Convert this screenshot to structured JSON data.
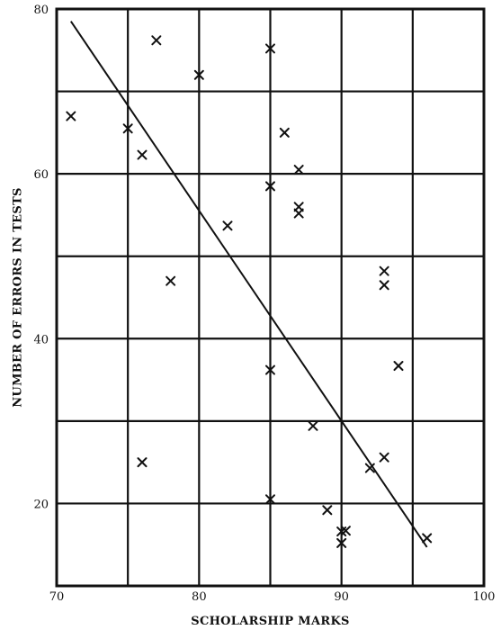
{
  "chart_data": {
    "type": "scatter",
    "title": "",
    "xlabel": "SCHOLARSHIP MARKS",
    "ylabel": "NUMBER OF ERRORS IN TESTS",
    "xlim": [
      70,
      100
    ],
    "ylim": [
      10,
      80
    ],
    "x_ticks": [
      "70",
      "80",
      "90",
      "100"
    ],
    "y_ticks": [
      "20",
      "40",
      "60",
      "80"
    ],
    "grid": true,
    "legend": "none",
    "points": [
      [
        71,
        67
      ],
      [
        75,
        65.5
      ],
      [
        76,
        62.3
      ],
      [
        77,
        76.2
      ],
      [
        80,
        72
      ],
      [
        85,
        75.2
      ],
      [
        86,
        65
      ],
      [
        87,
        60.5
      ],
      [
        85,
        58.5
      ],
      [
        87,
        56
      ],
      [
        87,
        55.2
      ],
      [
        82,
        53.7
      ],
      [
        78,
        47
      ],
      [
        93,
        48.2
      ],
      [
        93,
        46.5
      ],
      [
        85,
        36.2
      ],
      [
        94,
        36.7
      ],
      [
        88,
        29.4
      ],
      [
        76,
        25
      ],
      [
        92,
        24.3
      ],
      [
        93,
        25.6
      ],
      [
        85,
        20.5
      ],
      [
        89,
        19.2
      ],
      [
        90,
        16.6
      ],
      [
        90.3,
        16.7
      ],
      [
        90,
        15.2
      ],
      [
        96,
        15.8
      ]
    ],
    "trend_line": {
      "start": [
        71,
        78.5
      ],
      "end": [
        96,
        14.7
      ]
    }
  }
}
